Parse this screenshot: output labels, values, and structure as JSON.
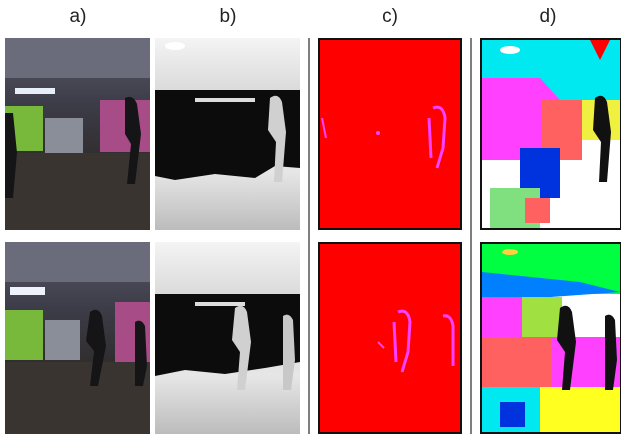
{
  "panel_labels": [
    "a)",
    "b)",
    "c)",
    "d)"
  ]
}
